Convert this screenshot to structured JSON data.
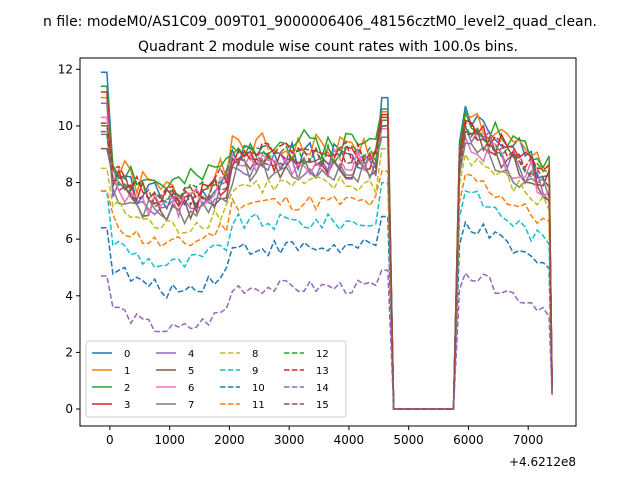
{
  "chart_data": {
    "type": "line",
    "suptitle": "n file: modeM0/AS1C09_009T01_9000006406_48156cztM0_level2_quad_clean.",
    "title": "Quadrant 2 module wise count rates with 100.0s bins.",
    "x_offset_label": "+4.6212e8",
    "xlim": [
      -500,
      7800
    ],
    "ylim": [
      -0.6,
      12.4
    ],
    "x_ticks": [
      0,
      1000,
      2000,
      3000,
      4000,
      5000,
      6000,
      7000
    ],
    "y_ticks": [
      0,
      2,
      4,
      6,
      8,
      10,
      12
    ],
    "grid": false,
    "legend_position": "lower-left",
    "x_segments": [
      [
        -150,
        4650,
        100
      ],
      [
        4750,
        5750,
        100
      ],
      [
        5850,
        7350,
        100
      ],
      [
        7400,
        7400,
        100
      ]
    ],
    "gap_value": 0,
    "series": [
      {
        "name": "0",
        "color": "#1f77b4",
        "dash": "solid",
        "base": 8.3,
        "start": 11.9,
        "peak": 11.0,
        "restart": 10.7,
        "jitter": 0.55,
        "end": 0.9
      },
      {
        "name": "1",
        "color": "#ff7f0e",
        "dash": "solid",
        "base": 8.6,
        "start": 11.0,
        "peak": 10.5,
        "restart": 10.4,
        "jitter": 0.55,
        "end": 0.8
      },
      {
        "name": "2",
        "color": "#2ca02c",
        "dash": "solid",
        "base": 8.8,
        "start": 11.4,
        "peak": 10.6,
        "restart": 10.5,
        "jitter": 0.5,
        "end": 0.7
      },
      {
        "name": "3",
        "color": "#d62728",
        "dash": "solid",
        "base": 8.2,
        "start": 11.2,
        "peak": 10.4,
        "restart": 10.2,
        "jitter": 0.5,
        "end": 1.0
      },
      {
        "name": "4",
        "color": "#9467bd",
        "dash": "solid",
        "base": 8.0,
        "start": 10.8,
        "peak": 10.2,
        "restart": 10.0,
        "jitter": 0.5,
        "end": 0.6
      },
      {
        "name": "5",
        "color": "#8c564b",
        "dash": "solid",
        "base": 7.9,
        "start": 9.2,
        "peak": 10.0,
        "restart": 9.8,
        "jitter": 0.45,
        "end": 0.8
      },
      {
        "name": "6",
        "color": "#e377c2",
        "dash": "solid",
        "base": 8.1,
        "start": 10.3,
        "peak": 9.9,
        "restart": 9.6,
        "jitter": 0.5,
        "end": 0.7
      },
      {
        "name": "7",
        "color": "#7f7f7f",
        "dash": "solid",
        "base": 7.8,
        "start": 9.7,
        "peak": 9.6,
        "restart": 9.4,
        "jitter": 0.45,
        "end": 0.5
      },
      {
        "name": "8",
        "color": "#bcbd22",
        "dash": "dashed",
        "base": 7.3,
        "start": 8.5,
        "peak": 9.2,
        "restart": 9.0,
        "jitter": 0.35,
        "end": 0.6
      },
      {
        "name": "9",
        "color": "#17becf",
        "dash": "dashed",
        "base": 6.0,
        "start": 7.7,
        "peak": 8.0,
        "restart": 7.7,
        "jitter": 0.3,
        "end": 0.5
      },
      {
        "name": "10",
        "color": "#1f77b4",
        "dash": "dashed",
        "base": 5.1,
        "start": 6.4,
        "peak": 6.8,
        "restart": 6.6,
        "jitter": 0.3,
        "end": 0.6
      },
      {
        "name": "11",
        "color": "#ff7f0e",
        "dash": "dashed",
        "base": 6.7,
        "start": 7.7,
        "peak": 8.4,
        "restart": 8.3,
        "jitter": 0.3,
        "end": 0.5
      },
      {
        "name": "12",
        "color": "#2ca02c",
        "dash": "dashed",
        "base": 8.4,
        "start": 10.0,
        "peak": 10.2,
        "restart": 10.0,
        "jitter": 0.35,
        "end": 0.7
      },
      {
        "name": "13",
        "color": "#d62728",
        "dash": "dashed",
        "base": 8.5,
        "start": 10.1,
        "peak": 10.3,
        "restart": 10.1,
        "jitter": 0.35,
        "end": 0.8
      },
      {
        "name": "14",
        "color": "#9467bd",
        "dash": "dashed",
        "base": 3.7,
        "start": 4.7,
        "peak": 4.9,
        "restart": 4.8,
        "jitter": 0.25,
        "end": 0.5
      },
      {
        "name": "15",
        "color": "#8c564b",
        "dash": "dashed",
        "base": 8.3,
        "start": 9.8,
        "peak": 10.0,
        "restart": 9.7,
        "jitter": 0.35,
        "end": 0.7
      }
    ]
  }
}
